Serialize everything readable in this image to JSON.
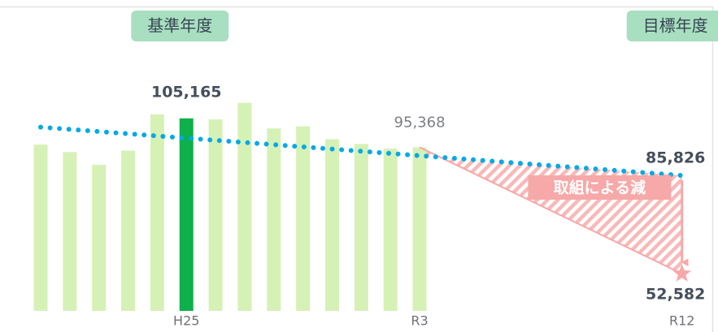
{
  "chart_data": {
    "type": "bar",
    "categories": [
      null,
      null,
      null,
      null,
      null,
      "H25",
      null,
      null,
      null,
      null,
      null,
      null,
      null,
      "R3",
      null,
      null,
      null,
      null,
      null,
      null,
      null,
      null,
      "R12"
    ],
    "ylim": [
      40000,
      115000
    ],
    "bars": {
      "values": [
        96280,
        93773,
        89444,
        94229,
        106533,
        105165,
        104800,
        110406,
        101748,
        102431,
        98102,
        96508,
        94912,
        95368
      ],
      "value_labels": [
        null,
        null,
        null,
        null,
        null,
        "105,165",
        null,
        null,
        null,
        null,
        null,
        null,
        null,
        "95,368"
      ],
      "colors": [
        "#d6f1b6",
        "#d6f1b6",
        "#d6f1b6",
        "#d6f1b6",
        "#d6f1b6",
        "#0db04b",
        "#d6f1b6",
        "#d6f1b6",
        "#d6f1b6",
        "#d6f1b6",
        "#d6f1b6",
        "#d6f1b6",
        "#d6f1b6",
        "#d6f1b6"
      ]
    },
    "trend": {
      "values": [
        102204,
        101460,
        100715,
        99971,
        99226,
        98482,
        97738,
        96993,
        96249,
        95504,
        94760,
        94016,
        93271,
        92527,
        91782,
        91038,
        90294,
        89549,
        88805,
        88060,
        87316,
        86571,
        85826
      ],
      "value_labels": [
        null,
        null,
        null,
        null,
        null,
        null,
        null,
        null,
        null,
        null,
        null,
        null,
        null,
        null,
        null,
        null,
        null,
        null,
        null,
        null,
        null,
        null,
        "85,826"
      ],
      "color": "#00a9e6"
    },
    "reduction": {
      "categories": [
        "R3",
        "R12"
      ],
      "values": [
        95368,
        52582
      ],
      "value_labels": [
        null,
        "52,582"
      ],
      "label": "取組による減",
      "color": "#f7a8a8"
    },
    "annotations": [
      {
        "text": "基準年度",
        "category": "H25"
      },
      {
        "text": "目標年度",
        "category": "R12"
      }
    ]
  }
}
